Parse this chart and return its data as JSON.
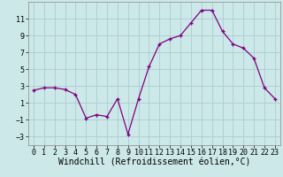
{
  "x": [
    0,
    1,
    2,
    3,
    4,
    5,
    6,
    7,
    8,
    9,
    10,
    11,
    12,
    13,
    14,
    15,
    16,
    17,
    18,
    19,
    20,
    21,
    22,
    23
  ],
  "y": [
    2.5,
    2.8,
    2.8,
    2.6,
    2.0,
    -0.8,
    -0.4,
    -0.6,
    1.5,
    -2.7,
    1.5,
    5.3,
    8.0,
    8.6,
    9.0,
    10.5,
    12.0,
    12.0,
    9.5,
    8.0,
    7.5,
    6.3,
    2.8,
    1.5
  ],
  "xlim": [
    -0.5,
    23.5
  ],
  "ylim": [
    -4,
    13
  ],
  "yticks": [
    -3,
    -1,
    1,
    3,
    5,
    7,
    9,
    11
  ],
  "xticks": [
    0,
    1,
    2,
    3,
    4,
    5,
    6,
    7,
    8,
    9,
    10,
    11,
    12,
    13,
    14,
    15,
    16,
    17,
    18,
    19,
    20,
    21,
    22,
    23
  ],
  "xlabel": "Windchill (Refroidissement éolien,°C)",
  "line_color": "#800080",
  "marker": "+",
  "bg_color": "#cce8e8",
  "grid_color": "#aacece",
  "label_fontsize": 7,
  "tick_fontsize": 6
}
